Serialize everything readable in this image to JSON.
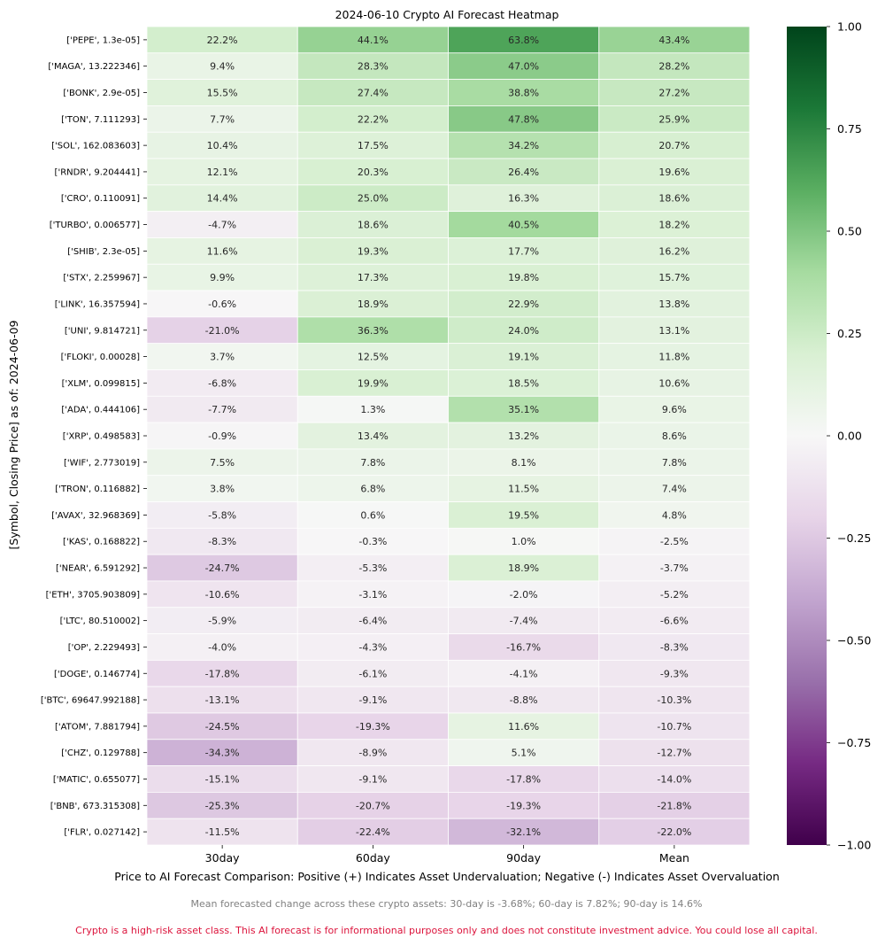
{
  "chart_data": {
    "type": "heatmap",
    "title": "2024-06-10 Crypto AI Forecast Heatmap",
    "xlabel": "Price to AI Forecast Comparison: Positive (+) Indicates Asset Undervaluation; Negative (-) Indicates Asset Overvaluation",
    "ylabel": "[Symbol, Closing Price] as of: 2024-06-09",
    "columns": [
      "30day",
      "60day",
      "90day",
      "Mean"
    ],
    "rows": [
      {
        "label": "['PEPE', 1.3e-05]",
        "values": [
          22.2,
          44.1,
          63.8,
          43.4
        ]
      },
      {
        "label": "['MAGA', 13.222346]",
        "values": [
          9.4,
          28.3,
          47.0,
          28.2
        ]
      },
      {
        "label": "['BONK', 2.9e-05]",
        "values": [
          15.5,
          27.4,
          38.8,
          27.2
        ]
      },
      {
        "label": "['TON', 7.111293]",
        "values": [
          7.7,
          22.2,
          47.8,
          25.9
        ]
      },
      {
        "label": "['SOL', 162.083603]",
        "values": [
          10.4,
          17.5,
          34.2,
          20.7
        ]
      },
      {
        "label": "['RNDR', 9.204441]",
        "values": [
          12.1,
          20.3,
          26.4,
          19.6
        ]
      },
      {
        "label": "['CRO', 0.110091]",
        "values": [
          14.4,
          25.0,
          16.3,
          18.6
        ]
      },
      {
        "label": "['TURBO', 0.006577]",
        "values": [
          -4.7,
          18.6,
          40.5,
          18.2
        ]
      },
      {
        "label": "['SHIB', 2.3e-05]",
        "values": [
          11.6,
          19.3,
          17.7,
          16.2
        ]
      },
      {
        "label": "['STX', 2.259967]",
        "values": [
          9.9,
          17.3,
          19.8,
          15.7
        ]
      },
      {
        "label": "['LINK', 16.357594]",
        "values": [
          -0.6,
          18.9,
          22.9,
          13.8
        ]
      },
      {
        "label": "['UNI', 9.814721]",
        "values": [
          -21.0,
          36.3,
          24.0,
          13.1
        ]
      },
      {
        "label": "['FLOKI', 0.00028]",
        "values": [
          3.7,
          12.5,
          19.1,
          11.8
        ]
      },
      {
        "label": "['XLM', 0.099815]",
        "values": [
          -6.8,
          19.9,
          18.5,
          10.6
        ]
      },
      {
        "label": "['ADA', 0.444106]",
        "values": [
          -7.7,
          1.3,
          35.1,
          9.6
        ]
      },
      {
        "label": "['XRP', 0.498583]",
        "values": [
          -0.9,
          13.4,
          13.2,
          8.6
        ]
      },
      {
        "label": "['WIF', 2.773019]",
        "values": [
          7.5,
          7.8,
          8.1,
          7.8
        ]
      },
      {
        "label": "['TRON', 0.116882]",
        "values": [
          3.8,
          6.8,
          11.5,
          7.4
        ]
      },
      {
        "label": "['AVAX', 32.968369]",
        "values": [
          -5.8,
          0.6,
          19.5,
          4.8
        ]
      },
      {
        "label": "['KAS', 0.168822]",
        "values": [
          -8.3,
          -0.3,
          1.0,
          -2.5
        ]
      },
      {
        "label": "['NEAR', 6.591292]",
        "values": [
          -24.7,
          -5.3,
          18.9,
          -3.7
        ]
      },
      {
        "label": "['ETH', 3705.903809]",
        "values": [
          -10.6,
          -3.1,
          -2.0,
          -5.2
        ]
      },
      {
        "label": "['LTC', 80.510002]",
        "values": [
          -5.9,
          -6.4,
          -7.4,
          -6.6
        ]
      },
      {
        "label": "['OP', 2.229493]",
        "values": [
          -4.0,
          -4.3,
          -16.7,
          -8.3
        ]
      },
      {
        "label": "['DOGE', 0.146774]",
        "values": [
          -17.8,
          -6.1,
          -4.1,
          -9.3
        ]
      },
      {
        "label": "['BTC', 69647.992188]",
        "values": [
          -13.1,
          -9.1,
          -8.8,
          -10.3
        ]
      },
      {
        "label": "['ATOM', 7.881794]",
        "values": [
          -24.5,
          -19.3,
          11.6,
          -10.7
        ]
      },
      {
        "label": "['CHZ', 0.129788]",
        "values": [
          -34.3,
          -8.9,
          5.1,
          -12.7
        ]
      },
      {
        "label": "['MATIC', 0.655077]",
        "values": [
          -15.1,
          -9.1,
          -17.8,
          -14.0
        ]
      },
      {
        "label": "['BNB', 673.315308]",
        "values": [
          -25.3,
          -20.7,
          -19.3,
          -21.8
        ]
      },
      {
        "label": "['FLR', 0.027142]",
        "values": [
          -11.5,
          -22.4,
          -32.1,
          -22.0
        ]
      }
    ],
    "value_format": "percent, one decimal",
    "colormap": "PRGn",
    "vmin": -1.0,
    "vmax": 1.0,
    "colorbar_ticks": [
      "1.00",
      "0.75",
      "0.50",
      "0.25",
      "0.00",
      "−0.25",
      "−0.50",
      "−0.75",
      "−1.00"
    ],
    "colors": {
      "negative_end": "#40004b",
      "neutral": "#f7f7f7",
      "positive_end": "#00441b"
    }
  },
  "notes": {
    "summary": "Mean forecasted change across these crypto assets:  30-day is -3.68%;  60-day is 7.82%;  90-day is 14.6%",
    "disclaimer": "Crypto is a high-risk asset class. This AI forecast is for informational purposes only and does not constitute investment advice. You could lose all capital."
  }
}
